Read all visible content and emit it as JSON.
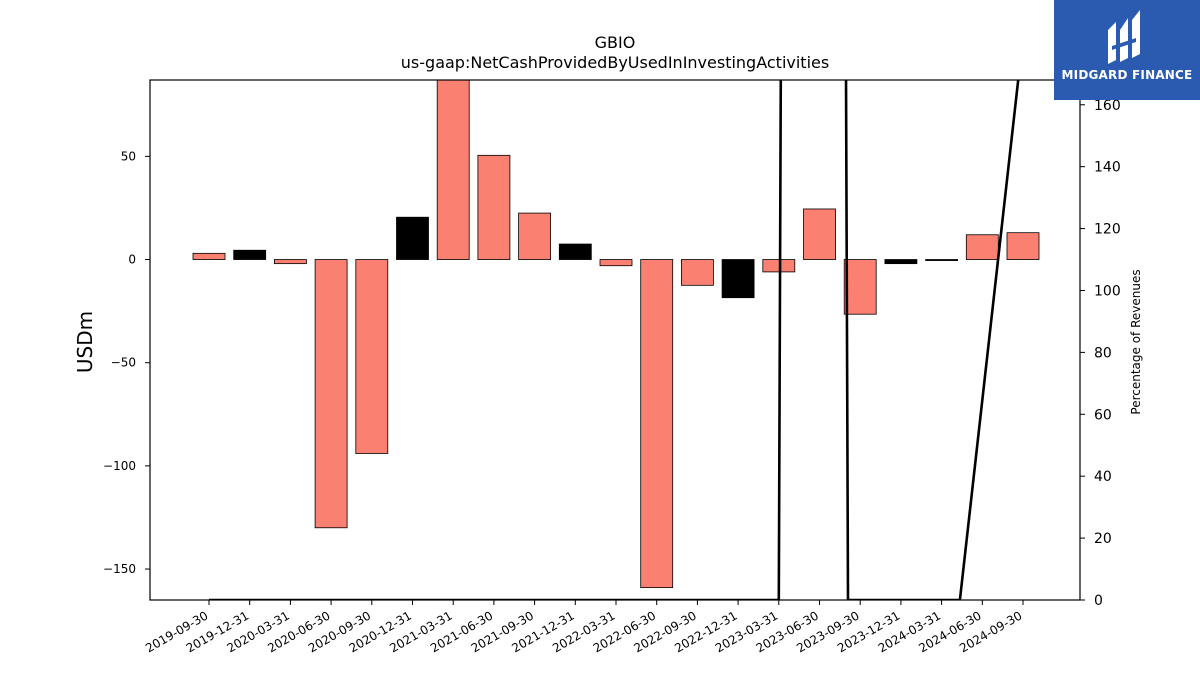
{
  "brand": {
    "name": "MIDGARD FINANCE",
    "bg_color": "#2b5bb0"
  },
  "chart_data": {
    "type": "bar",
    "title": "GBIO",
    "subtitle": "us-gaap:NetCashProvidedByUsedInInvestingActivities",
    "ylabel": "USDm",
    "y2label": "Percentage of Revenues",
    "ylim": [
      -165,
      87
    ],
    "y2lim": [
      0,
      168
    ],
    "yticks": [
      -150,
      -100,
      -50,
      0,
      50
    ],
    "y2ticks": [
      0,
      20,
      40,
      60,
      80,
      100,
      120,
      140,
      160
    ],
    "categories": [
      "2019-09-30",
      "2019-12-31",
      "2020-03-31",
      "2020-06-30",
      "2020-09-30",
      "2020-12-31",
      "2021-03-31",
      "2021-06-30",
      "2021-09-30",
      "2021-12-31",
      "2022-03-31",
      "2022-06-30",
      "2022-09-30",
      "2022-12-31",
      "2023-03-31",
      "2023-06-30",
      "2023-09-30",
      "2023-12-31",
      "2024-03-31",
      "2024-06-30",
      "2024-09-30"
    ],
    "values": [
      3,
      4.5,
      -2,
      -130,
      -94,
      20.5,
      95,
      50.5,
      22.5,
      7.5,
      -3,
      -159,
      -12.5,
      -18.5,
      -6,
      24.5,
      -26.5,
      -2,
      -0.5,
      12,
      13
    ],
    "colors": [
      "#fa8072",
      "#000000",
      "#fa8072",
      "#fa8072",
      "#fa8072",
      "#000000",
      "#fa8072",
      "#fa8072",
      "#fa8072",
      "#000000",
      "#fa8072",
      "#fa8072",
      "#fa8072",
      "#000000",
      "#fa8072",
      "#fa8072",
      "#fa8072",
      "#000000",
      "#000000",
      "#fa8072",
      "#fa8072"
    ],
    "secondary_line": {
      "axis": "y2",
      "x_index": [
        0,
        1,
        2,
        3,
        4,
        5,
        6,
        7,
        8,
        9,
        10,
        11,
        12,
        13,
        14,
        14.05,
        15.65,
        15.7,
        17.35,
        17.9,
        18.45,
        19.9,
        20
      ],
      "values": [
        0,
        0,
        0,
        0,
        0,
        0,
        0,
        0,
        0,
        0,
        0,
        0,
        0,
        0,
        0,
        170,
        170,
        0,
        0,
        0,
        0,
        170,
        170
      ]
    },
    "grid": false,
    "legend": "none"
  }
}
